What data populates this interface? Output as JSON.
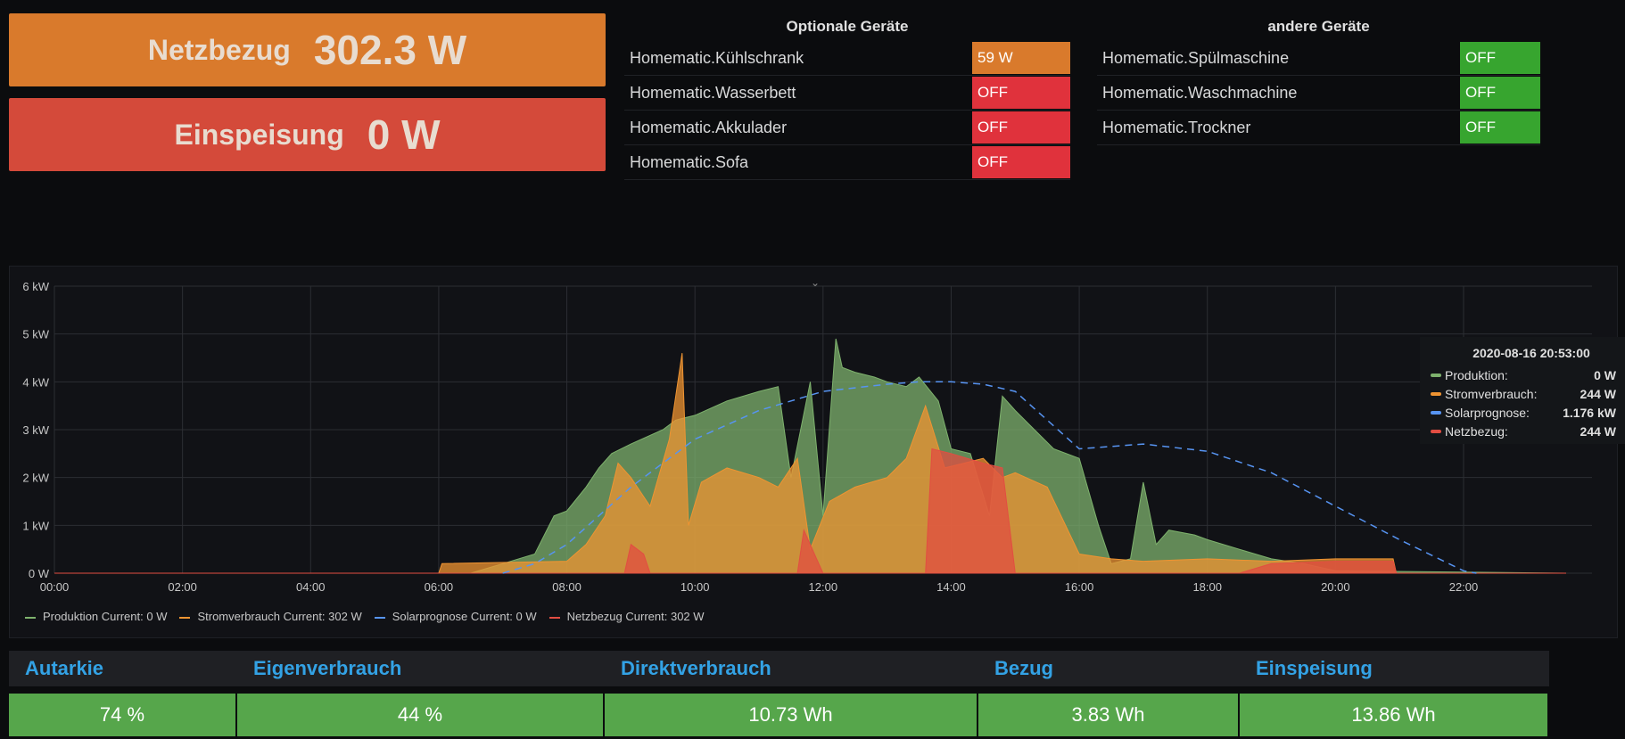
{
  "stats": {
    "netzbezug": {
      "label": "Netzbezug",
      "value": "302.3 W",
      "color": "#d97a2c"
    },
    "einspeisung": {
      "label": "Einspeisung",
      "value": "0 W",
      "color": "#d44a3a"
    }
  },
  "optional": {
    "title": "Optionale Geräte",
    "rows": [
      {
        "name": "Homematic.Kühlschrank",
        "value": "59 W",
        "color": "#d97a2c"
      },
      {
        "name": "Homematic.Wasserbett",
        "value": "OFF",
        "color": "#e0323c"
      },
      {
        "name": "Homematic.Akkulader",
        "value": "OFF",
        "color": "#e0323c"
      },
      {
        "name": "Homematic.Sofa",
        "value": "OFF",
        "color": "#e0323c"
      }
    ]
  },
  "other": {
    "title": "andere Geräte",
    "rows": [
      {
        "name": "Homematic.Spülmaschine",
        "value": "OFF",
        "color": "#37a52f"
      },
      {
        "name": "Homematic.Waschmachine",
        "value": "OFF",
        "color": "#37a52f"
      },
      {
        "name": "Homematic.Trockner",
        "value": "OFF",
        "color": "#37a52f"
      }
    ]
  },
  "chart_data": {
    "type": "area",
    "ylim": [
      0,
      6
    ],
    "xlim": [
      0,
      23.6
    ],
    "yticks": [
      "0 W",
      "1 kW",
      "2 kW",
      "3 kW",
      "4 kW",
      "5 kW",
      "6 kW"
    ],
    "xticks": [
      "00:00",
      "02:00",
      "04:00",
      "06:00",
      "08:00",
      "10:00",
      "12:00",
      "14:00",
      "16:00",
      "18:00",
      "20:00",
      "22:00"
    ],
    "series": [
      {
        "name": "Produktion",
        "current": "Current: 0 W",
        "color": "#7eb26d",
        "type": "area",
        "x": [
          0,
          6.5,
          7,
          7.5,
          7.8,
          8,
          8.3,
          8.5,
          8.7,
          9,
          9.5,
          9.7,
          10,
          10.5,
          11,
          11.3,
          11.5,
          11.8,
          12,
          12.2,
          12.3,
          12.5,
          12.8,
          13,
          13.3,
          13.5,
          13.8,
          14,
          14.3,
          14.6,
          14.8,
          15,
          15.3,
          15.6,
          16,
          16.3,
          16.5,
          16.8,
          17,
          17.2,
          17.4,
          17.8,
          18,
          18.5,
          19,
          19.5,
          20,
          23.6
        ],
        "y": [
          0,
          0,
          0.2,
          0.4,
          1.2,
          1.3,
          1.8,
          2.2,
          2.5,
          2.7,
          3.0,
          3.2,
          3.3,
          3.6,
          3.8,
          3.9,
          2.0,
          4.0,
          1.2,
          4.9,
          4.3,
          4.2,
          4.1,
          4.0,
          3.9,
          4.1,
          3.6,
          2.6,
          2.5,
          1.2,
          3.7,
          3.4,
          3.0,
          2.6,
          2.4,
          1.0,
          0.2,
          0.3,
          1.9,
          0.6,
          0.9,
          0.8,
          0.7,
          0.5,
          0.3,
          0.2,
          0.05,
          0
        ]
      },
      {
        "name": "Stromverbrauch",
        "current": "Current: 302 W",
        "color": "#ef9432",
        "type": "area",
        "x": [
          0,
          6,
          6.05,
          8,
          8.3,
          8.6,
          8.8,
          9,
          9.3,
          9.6,
          9.8,
          9.9,
          10.1,
          10.5,
          11,
          11.3,
          11.6,
          11.8,
          12.1,
          12.5,
          13,
          13.3,
          13.6,
          13.9,
          14.2,
          14.5,
          14.8,
          15,
          15.5,
          16,
          16.5,
          17,
          18,
          19,
          20,
          20.9,
          20.95,
          23.6
        ],
        "y": [
          0,
          0,
          0.2,
          0.25,
          0.6,
          1.2,
          2.3,
          2.0,
          1.4,
          2.8,
          4.6,
          1.0,
          1.9,
          2.2,
          2.0,
          1.8,
          2.4,
          0.5,
          1.5,
          1.8,
          2.0,
          2.4,
          3.5,
          2.2,
          2.3,
          2.4,
          2.0,
          2.1,
          1.8,
          0.4,
          0.3,
          0.25,
          0.3,
          0.25,
          0.3,
          0.3,
          0,
          0
        ]
      },
      {
        "name": "Solarprognose",
        "current": "Current: 0 W",
        "color": "#5794f2",
        "type": "dashed",
        "x": [
          7,
          7.5,
          8,
          8.5,
          9,
          10,
          11,
          12,
          13,
          13.5,
          14,
          14.5,
          15,
          15.5,
          16,
          16.5,
          17,
          18,
          19,
          20,
          21,
          22,
          22.2
        ],
        "y": [
          0,
          0.2,
          0.6,
          1.2,
          1.8,
          2.8,
          3.4,
          3.8,
          3.95,
          4.0,
          4.0,
          3.95,
          3.8,
          3.2,
          2.6,
          2.65,
          2.7,
          2.55,
          2.1,
          1.4,
          0.7,
          0.05,
          0
        ]
      },
      {
        "name": "Netzbezug",
        "current": "Current: 302 W",
        "color": "#e24d42",
        "type": "area",
        "x": [
          0,
          8.9,
          9.0,
          9.2,
          9.3,
          11.6,
          11.7,
          11.9,
          12,
          13.6,
          13.7,
          14,
          14.5,
          14.8,
          15,
          15.1,
          18.5,
          19,
          20,
          20.9,
          20.95,
          23.6
        ],
        "y": [
          0,
          0,
          0.6,
          0.4,
          0,
          0,
          0.9,
          0.3,
          0,
          0,
          2.6,
          2.5,
          2.3,
          2.2,
          0,
          0,
          0,
          0.2,
          0.25,
          0.25,
          0,
          0
        ]
      }
    ]
  },
  "tooltip": {
    "time": "2020-08-16 20:53:00",
    "rows": [
      {
        "label": "Produktion:",
        "value": "0 W",
        "color": "#7eb26d"
      },
      {
        "label": "Stromverbrauch:",
        "value": "244 W",
        "color": "#ef9432"
      },
      {
        "label": "Solarprognose:",
        "value": "1.176 kW",
        "color": "#5794f2"
      },
      {
        "label": "Netzbezug:",
        "value": "244 W",
        "color": "#e24d42"
      }
    ]
  },
  "bottom": {
    "headers": [
      "Autarkie",
      "Eigenverbrauch",
      "Direktverbrauch",
      "Bezug",
      "Einspeisung"
    ],
    "values": [
      "74 %",
      "44 %",
      "10.73 Wh",
      "3.83 Wh",
      "13.86 Wh"
    ]
  }
}
